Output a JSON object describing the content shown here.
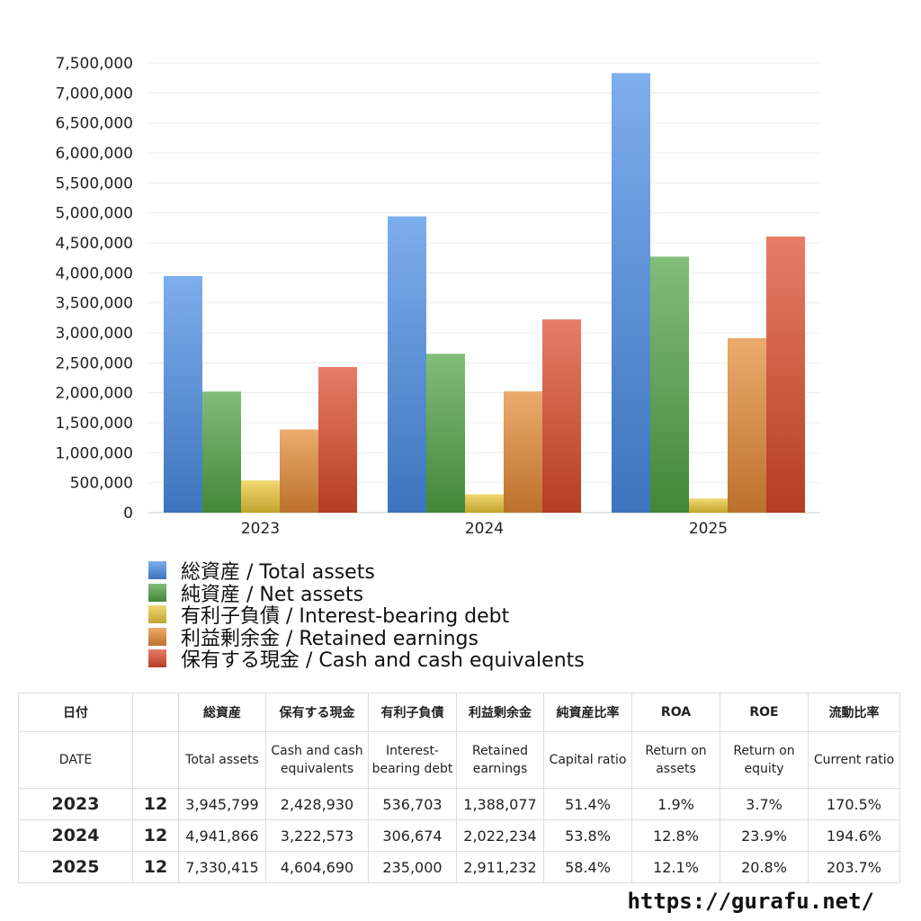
{
  "chart_data": {
    "type": "bar",
    "categories": [
      "2023",
      "2024",
      "2025"
    ],
    "y_ticks": [
      "0",
      "500,000",
      "1,000,000",
      "1,500,000",
      "2,000,000",
      "2,500,000",
      "3,000,000",
      "3,500,000",
      "4,000,000",
      "4,500,000",
      "5,000,000",
      "5,500,000",
      "6,000,000",
      "6,500,000",
      "7,000,000",
      "7,500,000"
    ],
    "ylim": [
      0,
      7500000
    ],
    "grid": true,
    "legend_position": "bottom",
    "series": [
      {
        "name": "総資産 / Total assets",
        "color": "#4a8ee6",
        "values": [
          3945799,
          4941866,
          7330415
        ]
      },
      {
        "name": "純資産 / Net assets",
        "color": "#52a446",
        "values": [
          2020000,
          2650000,
          4270000
        ]
      },
      {
        "name": "有利子負債 / Interest-bearing debt",
        "color": "#ecc93a",
        "values": [
          536703,
          306674,
          235000
        ]
      },
      {
        "name": "利益剰余金 / Retained earnings",
        "color": "#e58a35",
        "values": [
          1388077,
          2022234,
          2911232
        ]
      },
      {
        "name": "保有する現金 /  Cash and cash equivalents",
        "color": "#dd4a2a",
        "values": [
          2428930,
          3222573,
          4604690
        ]
      }
    ]
  },
  "table": {
    "header_jp": [
      "日付",
      "",
      "総資産",
      "保有する現金",
      "有利子負債",
      "利益剰余金",
      "純資産比率",
      "ROA",
      "ROE",
      "流動比率"
    ],
    "header_en": [
      "DATE",
      "",
      "Total assets",
      "Cash and cash equivalents",
      "Interest-bearing debt",
      "Retained earnings",
      "Capital ratio",
      "Return on assets",
      "Return on equity",
      "Current ratio"
    ],
    "rows": [
      [
        "2023",
        "12",
        "3,945,799",
        "2,428,930",
        "536,703",
        "1,388,077",
        "51.4%",
        "1.9%",
        "3.7%",
        "170.5%"
      ],
      [
        "2024",
        "12",
        "4,941,866",
        "3,222,573",
        "306,674",
        "2,022,234",
        "53.8%",
        "12.8%",
        "23.9%",
        "194.6%"
      ],
      [
        "2025",
        "12",
        "7,330,415",
        "4,604,690",
        "235,000",
        "2,911,232",
        "58.4%",
        "12.1%",
        "20.8%",
        "203.7%"
      ]
    ]
  },
  "footer": {
    "site": "https://gurafu.net/"
  }
}
